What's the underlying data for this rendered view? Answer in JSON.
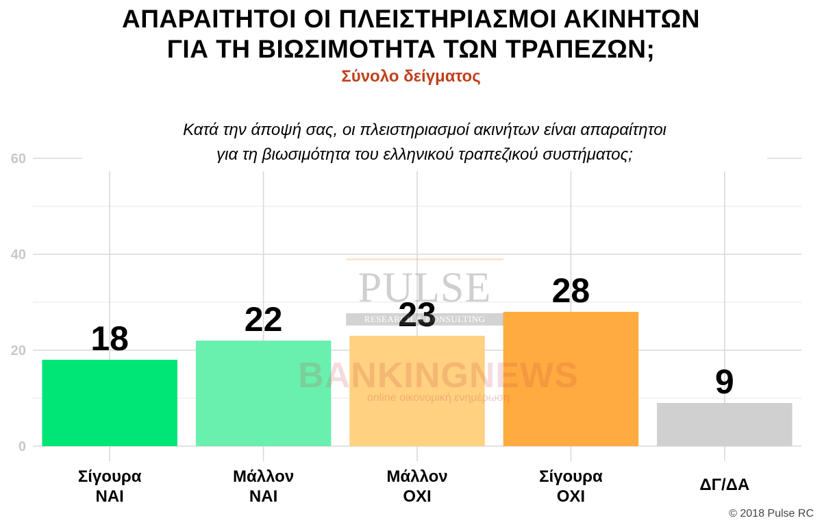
{
  "title_line1": "ΑΠΑΡΑΙΤΗΤΟΙ ΟΙ ΠΛΕΙΣΤΗΡΙΑΣΜΟΙ ΑΚΙΝΗΤΩΝ",
  "title_line2": "ΓΙΑ ΤΗ ΒΙΩΣΙΜΟΤΗΤΑ ΤΩΝ ΤΡΑΠΕΖΩΝ;",
  "subtitle": "Σύνολο δείγματος",
  "question_line1": "Κατά την άποψή σας, οι πλειστηριασμοί ακινήτων είναι απαραίτητοι",
  "question_line2": "για τη βιωσιμότητα του ελληνικού τραπεζικού συστήματος;",
  "copyright": "© 2018 Pulse RC",
  "watermarks": {
    "pulse": "PULSE",
    "research": "RESEARCH & CONSULTING",
    "banking": "BANKINGNEWS",
    "online": "online οικονομική ενημέρωση"
  },
  "chart_data": {
    "type": "bar",
    "categories": [
      [
        "Σίγουρα",
        "ΝΑΙ"
      ],
      [
        "Μάλλον",
        "ΝΑΙ"
      ],
      [
        "Μάλλον",
        "ΟΧΙ"
      ],
      [
        "Σίγουρα",
        "ΟΧΙ"
      ],
      [
        "ΔΓ/ΔΑ"
      ]
    ],
    "values": [
      18,
      22,
      23,
      28,
      9
    ],
    "colors": [
      "#00e676",
      "#69f0ae",
      "#ffd180",
      "#ffab40",
      "#d0d0d0"
    ],
    "ylim": [
      0,
      65
    ],
    "yticks": [
      0,
      20,
      40,
      60
    ],
    "grid": true
  }
}
